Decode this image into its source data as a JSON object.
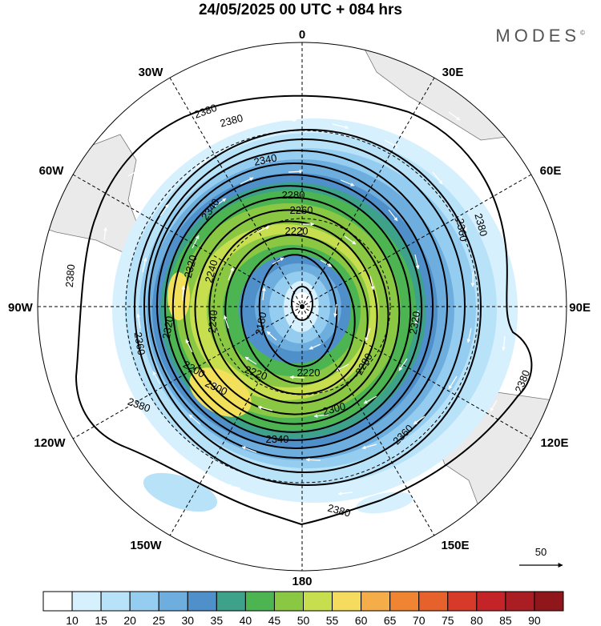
{
  "header": {
    "title": "24/05/2025  00 UTC  + 084 hrs",
    "brand": "MODES",
    "brand_mark": "©"
  },
  "map": {
    "projection": "south-polar-stereographic",
    "longitude_labels": [
      "0",
      "30E",
      "60E",
      "90E",
      "120E",
      "150E",
      "180",
      "150W",
      "120W",
      "90W",
      "60W",
      "30W"
    ],
    "contour_labels": [
      "2380",
      "2380",
      "2380",
      "2380",
      "2380",
      "2380",
      "2380",
      "2360",
      "2360",
      "2360",
      "2340",
      "2340",
      "2340",
      "2320",
      "2320",
      "2320",
      "2300",
      "2300",
      "2280",
      "2280",
      "2260",
      "2240",
      "2240",
      "2220",
      "2220",
      "2220",
      "2200",
      "2180"
    ],
    "vector_reference": "50"
  },
  "colorbar": {
    "ticks": [
      "10",
      "15",
      "20",
      "25",
      "30",
      "35",
      "40",
      "45",
      "50",
      "55",
      "60",
      "65",
      "70",
      "75",
      "80",
      "85",
      "90"
    ],
    "colors": [
      "#ffffff",
      "#d7f0fd",
      "#b8e2f8",
      "#94cdf0",
      "#6eaedf",
      "#4f8fca",
      "#3ea18a",
      "#4cb552",
      "#8ac843",
      "#c7de4f",
      "#f5dc5e",
      "#f4ad48",
      "#ef8433",
      "#e6612c",
      "#d83a2a",
      "#c42427",
      "#aa1d22",
      "#8f171c"
    ]
  },
  "colors": {
    "land": "#eaeaea",
    "jet_core": "#f2df5a",
    "wind_strong": "#8ac843",
    "wind_mid": "#4cb552",
    "wind_weak": "#94cdf0",
    "contour": "#000000",
    "vector": "#ffffff"
  }
}
